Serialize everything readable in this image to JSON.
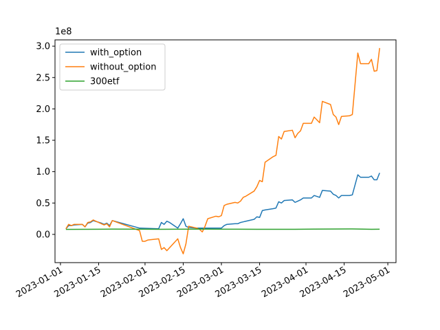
{
  "chart_data": {
    "type": "line",
    "title": "",
    "xlabel": "",
    "ylabel": "",
    "y_offset_label": "1e8",
    "xlim": [
      "2022-12-30",
      "2023-05-04"
    ],
    "ylim": [
      -0.45,
      3.1
    ],
    "x_ticks": [
      "2023-01-01",
      "2023-01-15",
      "2023-02-01",
      "2023-02-15",
      "2023-03-01",
      "2023-03-15",
      "2023-04-01",
      "2023-04-15",
      "2023-05-01"
    ],
    "y_ticks": [
      0.0,
      0.5,
      1.0,
      1.5,
      2.0,
      2.5,
      3.0
    ],
    "y_tick_labels": [
      "0.0",
      "0.5",
      "1.0",
      "1.5",
      "2.0",
      "2.5",
      "3.0"
    ],
    "legend_position": "upper-left",
    "grid": false,
    "series": [
      {
        "name": "with_option",
        "color": "#1f77b4",
        "points": [
          [
            "2023-01-03",
            0.09
          ],
          [
            "2023-01-04",
            0.14
          ],
          [
            "2023-01-05",
            0.14
          ],
          [
            "2023-01-06",
            0.15
          ],
          [
            "2023-01-09",
            0.16
          ],
          [
            "2023-01-10",
            0.12
          ],
          [
            "2023-01-11",
            0.18
          ],
          [
            "2023-01-12",
            0.19
          ],
          [
            "2023-01-13",
            0.22
          ],
          [
            "2023-01-16",
            0.18
          ],
          [
            "2023-01-17",
            0.16
          ],
          [
            "2023-01-18",
            0.18
          ],
          [
            "2023-01-19",
            0.14
          ],
          [
            "2023-01-20",
            0.22
          ],
          [
            "2023-01-30",
            0.1
          ],
          [
            "2023-02-06",
            0.09
          ],
          [
            "2023-02-07",
            0.19
          ],
          [
            "2023-02-08",
            0.16
          ],
          [
            "2023-02-09",
            0.21
          ],
          [
            "2023-02-10",
            0.19
          ],
          [
            "2023-02-13",
            0.1
          ],
          [
            "2023-02-14",
            0.17
          ],
          [
            "2023-02-15",
            0.25
          ],
          [
            "2023-02-16",
            0.13
          ],
          [
            "2023-02-17",
            0.11
          ],
          [
            "2023-02-20",
            0.1
          ],
          [
            "2023-02-21",
            0.1
          ],
          [
            "2023-02-22",
            0.1
          ],
          [
            "2023-02-23",
            0.1
          ],
          [
            "2023-02-24",
            0.1
          ],
          [
            "2023-02-27",
            0.1
          ],
          [
            "2023-02-28",
            0.1
          ],
          [
            "2023-03-01",
            0.1
          ],
          [
            "2023-03-02",
            0.14
          ],
          [
            "2023-03-03",
            0.16
          ],
          [
            "2023-03-06",
            0.17
          ],
          [
            "2023-03-07",
            0.17
          ],
          [
            "2023-03-08",
            0.19
          ],
          [
            "2023-03-09",
            0.2
          ],
          [
            "2023-03-10",
            0.21
          ],
          [
            "2023-03-13",
            0.24
          ],
          [
            "2023-03-14",
            0.28
          ],
          [
            "2023-03-15",
            0.27
          ],
          [
            "2023-03-16",
            0.38
          ],
          [
            "2023-03-17",
            0.39
          ],
          [
            "2023-03-20",
            0.41
          ],
          [
            "2023-03-21",
            0.42
          ],
          [
            "2023-03-22",
            0.52
          ],
          [
            "2023-03-23",
            0.5
          ],
          [
            "2023-03-24",
            0.54
          ],
          [
            "2023-03-27",
            0.55
          ],
          [
            "2023-03-28",
            0.51
          ],
          [
            "2023-03-29",
            0.53
          ],
          [
            "2023-03-30",
            0.55
          ],
          [
            "2023-03-31",
            0.58
          ],
          [
            "2023-04-03",
            0.58
          ],
          [
            "2023-04-04",
            0.62
          ],
          [
            "2023-04-06",
            0.59
          ],
          [
            "2023-04-07",
            0.7
          ],
          [
            "2023-04-10",
            0.69
          ],
          [
            "2023-04-11",
            0.64
          ],
          [
            "2023-04-12",
            0.62
          ],
          [
            "2023-04-13",
            0.58
          ],
          [
            "2023-04-14",
            0.62
          ],
          [
            "2023-04-17",
            0.62
          ],
          [
            "2023-04-18",
            0.63
          ],
          [
            "2023-04-20",
            0.95
          ],
          [
            "2023-04-21",
            0.91
          ],
          [
            "2023-04-24",
            0.91
          ],
          [
            "2023-04-25",
            0.93
          ],
          [
            "2023-04-26",
            0.87
          ],
          [
            "2023-04-27",
            0.87
          ],
          [
            "2023-04-28",
            0.98
          ]
        ]
      },
      {
        "name": "without_option",
        "color": "#ff7f0e",
        "points": [
          [
            "2023-01-03",
            0.09
          ],
          [
            "2023-01-04",
            0.16
          ],
          [
            "2023-01-05",
            0.14
          ],
          [
            "2023-01-06",
            0.16
          ],
          [
            "2023-01-09",
            0.16
          ],
          [
            "2023-01-10",
            0.12
          ],
          [
            "2023-01-11",
            0.19
          ],
          [
            "2023-01-12",
            0.2
          ],
          [
            "2023-01-13",
            0.23
          ],
          [
            "2023-01-16",
            0.17
          ],
          [
            "2023-01-17",
            0.15
          ],
          [
            "2023-01-18",
            0.17
          ],
          [
            "2023-01-19",
            0.12
          ],
          [
            "2023-01-20",
            0.22
          ],
          [
            "2023-01-30",
            0.06
          ],
          [
            "2023-01-31",
            -0.11
          ],
          [
            "2023-02-01",
            -0.11
          ],
          [
            "2023-02-02",
            -0.09
          ],
          [
            "2023-02-06",
            -0.07
          ],
          [
            "2023-02-07",
            -0.24
          ],
          [
            "2023-02-08",
            -0.21
          ],
          [
            "2023-02-09",
            -0.26
          ],
          [
            "2023-02-13",
            -0.07
          ],
          [
            "2023-02-14",
            -0.21
          ],
          [
            "2023-02-15",
            -0.31
          ],
          [
            "2023-02-16",
            -0.15
          ],
          [
            "2023-02-17",
            0.13
          ],
          [
            "2023-02-20",
            0.1
          ],
          [
            "2023-02-21",
            0.08
          ],
          [
            "2023-02-22",
            0.04
          ],
          [
            "2023-02-23",
            0.13
          ],
          [
            "2023-02-24",
            0.25
          ],
          [
            "2023-02-27",
            0.29
          ],
          [
            "2023-02-28",
            0.28
          ],
          [
            "2023-03-01",
            0.3
          ],
          [
            "2023-03-02",
            0.46
          ],
          [
            "2023-03-03",
            0.48
          ],
          [
            "2023-03-06",
            0.51
          ],
          [
            "2023-03-07",
            0.5
          ],
          [
            "2023-03-08",
            0.53
          ],
          [
            "2023-03-09",
            0.59
          ],
          [
            "2023-03-10",
            0.61
          ],
          [
            "2023-03-13",
            0.69
          ],
          [
            "2023-03-14",
            0.76
          ],
          [
            "2023-03-15",
            0.86
          ],
          [
            "2023-03-16",
            0.84
          ],
          [
            "2023-03-17",
            1.15
          ],
          [
            "2023-03-20",
            1.24
          ],
          [
            "2023-03-21",
            1.26
          ],
          [
            "2023-03-22",
            1.56
          ],
          [
            "2023-03-23",
            1.52
          ],
          [
            "2023-03-24",
            1.64
          ],
          [
            "2023-03-27",
            1.66
          ],
          [
            "2023-03-28",
            1.54
          ],
          [
            "2023-03-29",
            1.61
          ],
          [
            "2023-03-30",
            1.65
          ],
          [
            "2023-03-31",
            1.77
          ],
          [
            "2023-04-03",
            1.77
          ],
          [
            "2023-04-04",
            1.87
          ],
          [
            "2023-04-06",
            1.78
          ],
          [
            "2023-04-07",
            2.12
          ],
          [
            "2023-04-10",
            2.07
          ],
          [
            "2023-04-11",
            1.91
          ],
          [
            "2023-04-12",
            1.87
          ],
          [
            "2023-04-13",
            1.75
          ],
          [
            "2023-04-14",
            1.88
          ],
          [
            "2023-04-17",
            1.89
          ],
          [
            "2023-04-18",
            1.91
          ],
          [
            "2023-04-20",
            2.89
          ],
          [
            "2023-04-21",
            2.72
          ],
          [
            "2023-04-24",
            2.72
          ],
          [
            "2023-04-25",
            2.79
          ],
          [
            "2023-04-26",
            2.6
          ],
          [
            "2023-04-27",
            2.61
          ],
          [
            "2023-04-28",
            2.97
          ]
        ]
      },
      {
        "name": "300etf",
        "color": "#2ca02c",
        "points": [
          [
            "2023-01-03",
            0.08
          ],
          [
            "2023-01-10",
            0.081
          ],
          [
            "2023-01-17",
            0.083
          ],
          [
            "2023-01-20",
            0.084
          ],
          [
            "2023-01-31",
            0.083
          ],
          [
            "2023-02-07",
            0.082
          ],
          [
            "2023-02-14",
            0.083
          ],
          [
            "2023-02-21",
            0.084
          ],
          [
            "2023-02-28",
            0.083
          ],
          [
            "2023-03-07",
            0.083
          ],
          [
            "2023-03-14",
            0.081
          ],
          [
            "2023-03-21",
            0.081
          ],
          [
            "2023-03-28",
            0.082
          ],
          [
            "2023-04-04",
            0.084
          ],
          [
            "2023-04-11",
            0.085
          ],
          [
            "2023-04-18",
            0.087
          ],
          [
            "2023-04-25",
            0.082
          ],
          [
            "2023-04-28",
            0.083
          ]
        ]
      }
    ]
  }
}
